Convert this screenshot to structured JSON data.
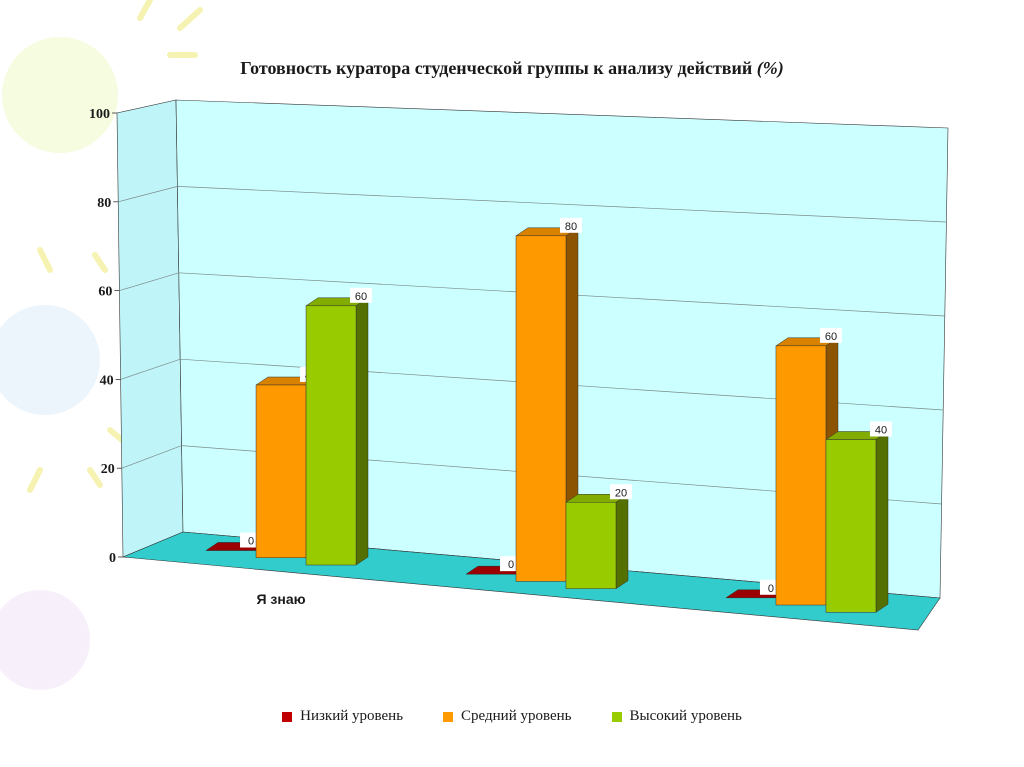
{
  "title_main": "Готовность куратора студенческой группы к анализу действий",
  "title_unit": "(%)",
  "colors": {
    "wall_back": "#ccffff",
    "wall_left": "#bff5f8",
    "floor": "#33cccc",
    "grid": "#7a8a8a",
    "outline": "#333333"
  },
  "chart_data": {
    "type": "bar",
    "title": "Готовность куратора студенческой группы к анализу действий (%)",
    "categories": [
      "Я знаю",
      "",
      ""
    ],
    "ylim": [
      0,
      100
    ],
    "yticks": [
      "0",
      "20",
      "40",
      "60",
      "80",
      "100"
    ],
    "grid": true,
    "legend_position": "bottom",
    "series": [
      {
        "name": "Низкий уровень",
        "values": [
          0,
          0,
          0
        ],
        "color": "#c00000"
      },
      {
        "name": "Средний уровень",
        "values": [
          40,
          80,
          60
        ],
        "color": "#ff9900"
      },
      {
        "name": "Высокий уровень",
        "values": [
          60,
          20,
          40
        ],
        "color": "#99cc00"
      }
    ]
  }
}
